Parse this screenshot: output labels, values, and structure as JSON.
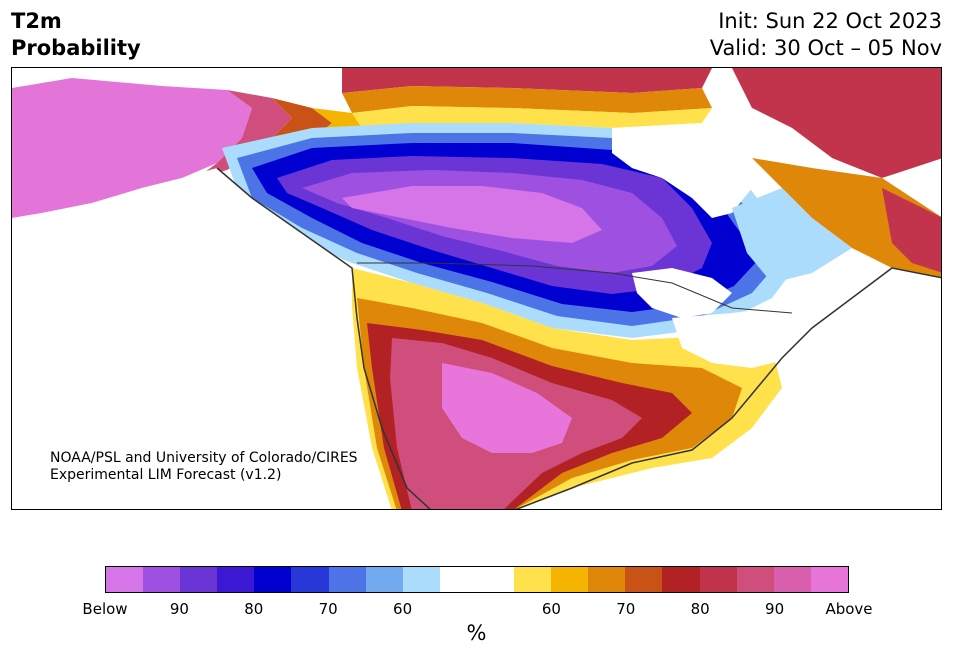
{
  "header": {
    "title_line1": "T2m",
    "title_line2": "Probability",
    "init": "Init: Sun 22 Oct 2023",
    "valid": "Valid: 30 Oct – 05 Nov"
  },
  "credit": {
    "line1": "NOAA/PSL and University of Colorado/CIRES",
    "line2": "Experimental LIM Forecast (v1.2)"
  },
  "colorbar": {
    "colors": [
      "#d575e8",
      "#9e50e0",
      "#6b35d6",
      "#3a18d4",
      "#0000d0",
      "#2838d8",
      "#4c74e6",
      "#72aaf0",
      "#acdcfb",
      "#ffffff",
      "#ffffff",
      "#ffe14c",
      "#f4b400",
      "#df8709",
      "#c95317",
      "#b22224",
      "#c2344b",
      "#cf4e7c",
      "#da60af",
      "#e875da"
    ],
    "tick_labels": [
      "Below",
      "90",
      "80",
      "70",
      "60",
      "60",
      "70",
      "80",
      "90",
      "Above"
    ],
    "unit": "%"
  },
  "legend_colors": {
    "below_extreme": "#d575e8",
    "cold": "#0000d0",
    "neutral": "#ffffff",
    "warm": "#f4b400",
    "above_extreme": "#e875da"
  }
}
